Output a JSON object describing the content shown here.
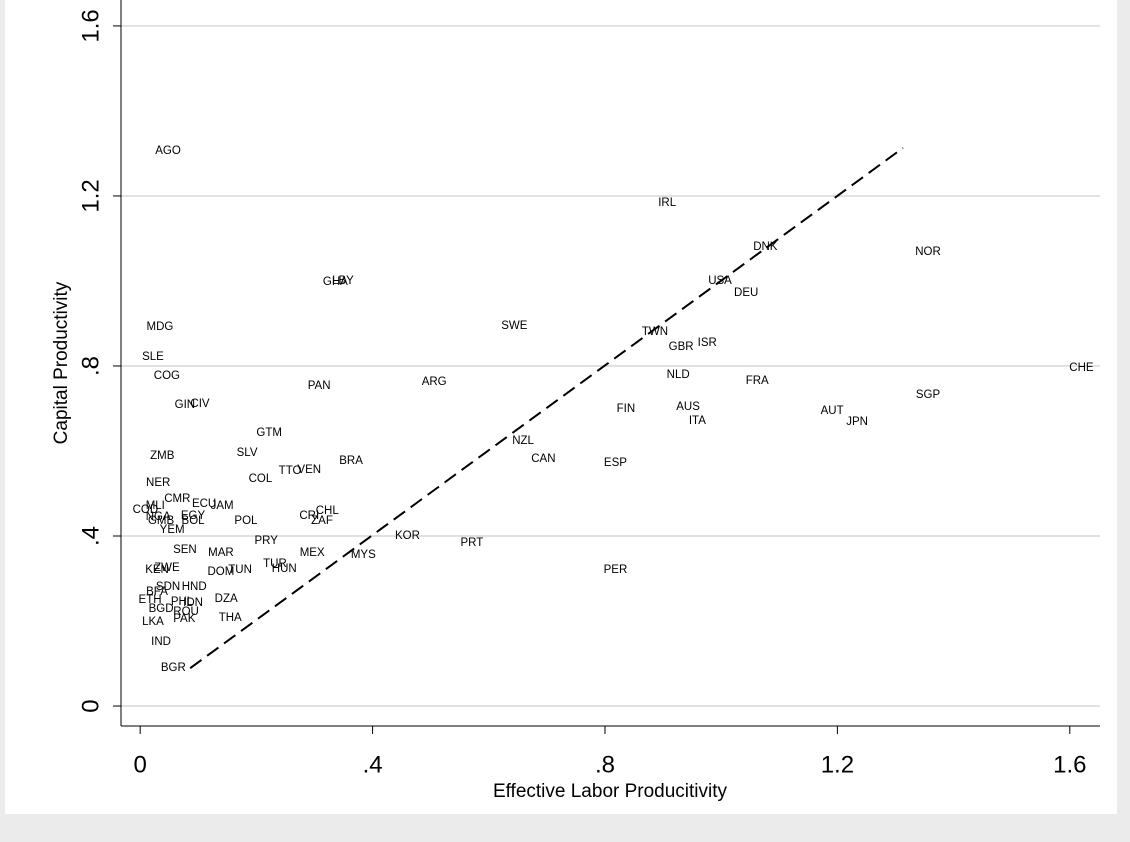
{
  "chart_data": {
    "type": "scatter-labels",
    "x_label": "Effective Labor Producitivity",
    "y_label": "Capital  Productivity",
    "xlim": [
      -0.033,
      1.652
    ],
    "ylim": [
      -0.047,
      1.661
    ],
    "xticks": [
      0,
      {
        "value": 0.4,
        "label": ".4"
      },
      {
        "value": 0.8,
        "label": ".8"
      },
      1.2,
      1.6
    ],
    "yticks": [
      0,
      {
        "value": 0.4,
        "label": ".4"
      },
      {
        "value": 0.8,
        "label": ".8"
      },
      1.2,
      1.6
    ],
    "grid": true,
    "reference_line": {
      "x": [
        0.086,
        1.313
      ],
      "y": [
        0.089,
        1.313
      ],
      "color": "#000000"
    },
    "labels": [
      "AGO",
      "IRL",
      "DNK",
      "NOR",
      "GHA",
      "LBY",
      "USA",
      "DEU",
      "MDG",
      "SWE",
      "TWN",
      "ISR",
      "GBR",
      "SLE",
      "COG",
      "CHE",
      "NLD",
      "FRA",
      "PAN",
      "ARG",
      "SGP",
      "GIN",
      "CIV",
      "FIN",
      "AUS",
      "AUT",
      "JPN",
      "ITA",
      "GTM",
      "NZL",
      "ZMB",
      "SLV",
      "CAN",
      "BRA",
      "ESP",
      "TTO",
      "VEN",
      "COL",
      "NER",
      "CMR",
      "ECU",
      "JAM",
      "MLI",
      "COD",
      "NGA",
      "GMB",
      "BOL",
      "EGY",
      "CHL",
      "CRI",
      "ZAF",
      "POL",
      "YEM",
      "PRY",
      "KOR",
      "PRT",
      "SEN",
      "MAR",
      "MEX",
      "MYS",
      "ZWE",
      "KEN",
      "TUR",
      "TUN",
      "HUN",
      "DOM",
      "PER",
      "SDN",
      "HND",
      "BFA",
      "DZA",
      "ETH",
      "PHL",
      "IDN",
      "BGD",
      "ROU",
      "PAK",
      "THA",
      "LKA",
      "IND",
      "BGR"
    ],
    "x": [
      0.048,
      0.907,
      1.076,
      1.356,
      0.336,
      0.349,
      0.998,
      1.043,
      0.034,
      0.644,
      0.886,
      0.976,
      0.931,
      0.022,
      0.046,
      1.62,
      0.926,
      1.062,
      0.308,
      0.506,
      1.356,
      0.077,
      0.103,
      0.836,
      0.943,
      1.191,
      1.234,
      0.959,
      0.222,
      0.659,
      0.038,
      0.184,
      0.694,
      0.363,
      0.818,
      0.258,
      0.291,
      0.207,
      0.031,
      0.064,
      0.11,
      0.141,
      0.026,
      0.009,
      0.031,
      0.036,
      0.091,
      0.091,
      0.322,
      0.291,
      0.313,
      0.182,
      0.055,
      0.217,
      0.46,
      0.571,
      0.077,
      0.139,
      0.296,
      0.384,
      0.046,
      0.029,
      0.232,
      0.172,
      0.248,
      0.139,
      0.818,
      0.048,
      0.093,
      0.029,
      0.148,
      0.017,
      0.072,
      0.091,
      0.036,
      0.079,
      0.076,
      0.155,
      0.022,
      0.036,
      0.057
    ],
    "y": [
      1.306,
      1.184,
      1.08,
      1.068,
      0.998,
      1.0,
      1.0,
      0.972,
      0.892,
      0.894,
      0.88,
      0.854,
      0.845,
      0.821,
      0.776,
      0.795,
      0.779,
      0.765,
      0.753,
      0.762,
      0.732,
      0.708,
      0.711,
      0.699,
      0.704,
      0.694,
      0.668,
      0.671,
      0.642,
      0.624,
      0.588,
      0.595,
      0.581,
      0.576,
      0.572,
      0.553,
      0.555,
      0.534,
      0.525,
      0.487,
      0.475,
      0.471,
      0.471,
      0.461,
      0.445,
      0.435,
      0.435,
      0.447,
      0.459,
      0.447,
      0.435,
      0.435,
      0.414,
      0.388,
      0.4,
      0.384,
      0.367,
      0.36,
      0.36,
      0.355,
      0.325,
      0.32,
      0.334,
      0.32,
      0.322,
      0.315,
      0.32,
      0.28,
      0.28,
      0.268,
      0.252,
      0.249,
      0.245,
      0.243,
      0.228,
      0.221,
      0.205,
      0.207,
      0.198,
      0.151,
      0.089
    ]
  }
}
